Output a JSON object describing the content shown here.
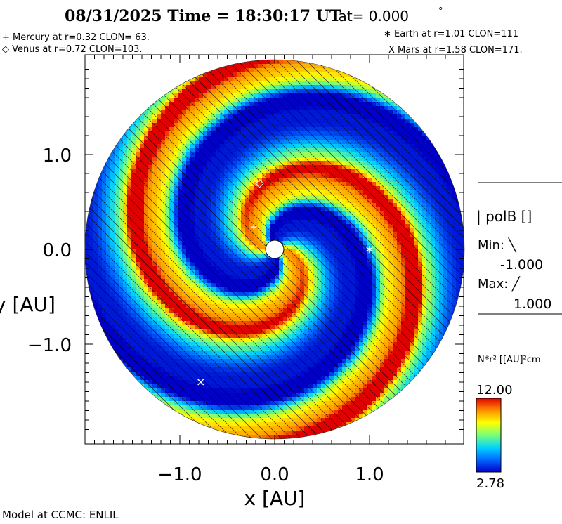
{
  "header": {
    "title": "08/31/2025 Time = 18:30:17 UT",
    "lat_label": "lat= 0.000",
    "degree_mark": "°"
  },
  "planets": {
    "mercury": "+ Mercury at r=0.32 CLON= 63.",
    "venus": "◇ Venus at r=0.72 CLON=103.",
    "earth": "∗ Earth at   r=1.01 CLON=111",
    "mars": "X Mars at r=1.58 CLON=171."
  },
  "legend": {
    "polb_label": "| polB []",
    "min_label": "Min: ╲",
    "min_value": "-1.000",
    "max_label": "Max: ╱",
    "max_value": "1.000",
    "density_label": "N*r² [[AU]²cm",
    "colorbar_max": "12.00",
    "colorbar_min": "2.78"
  },
  "footer": "Model at CCMC: ENLIL",
  "colors": {
    "colormap": [
      "#0000c8",
      "#0064ff",
      "#00d2ff",
      "#78ff78",
      "#ffff00",
      "#ff8c00",
      "#e10000"
    ]
  },
  "chart_data": {
    "type": "heatmap",
    "projection": "polar-disk",
    "xlabel": "x [AU]",
    "ylabel": "y [AU]",
    "xlim": [
      -2.0,
      2.0
    ],
    "ylim": [
      -2.0,
      2.0
    ],
    "disk_radius": 2.0,
    "inner_boundary_radius": 0.1,
    "xticks": [
      -1.0,
      0.0,
      1.0
    ],
    "yticks": [
      -1.0,
      0.0,
      1.0
    ],
    "xtick_labels": [
      "−1.0",
      "0.0",
      "1.0"
    ],
    "ytick_labels": [
      "−1.0",
      "0.0",
      "1.0"
    ],
    "colorbar_range": [
      2.78,
      12.0
    ],
    "bodies": [
      {
        "name": "Mercury",
        "r": 0.32,
        "clon": 63,
        "x": -0.22,
        "y": 0.24,
        "symbol": "+"
      },
      {
        "name": "Venus",
        "r": 0.72,
        "clon": 103,
        "x": -0.16,
        "y": 0.7,
        "symbol": "◇"
      },
      {
        "name": "Earth",
        "r": 1.01,
        "clon": 111,
        "x": 1.0,
        "y": 0.0,
        "symbol": "∗"
      },
      {
        "name": "Mars",
        "r": 1.58,
        "clon": 171,
        "x": -0.78,
        "y": -1.4,
        "symbol": "X"
      }
    ]
  }
}
